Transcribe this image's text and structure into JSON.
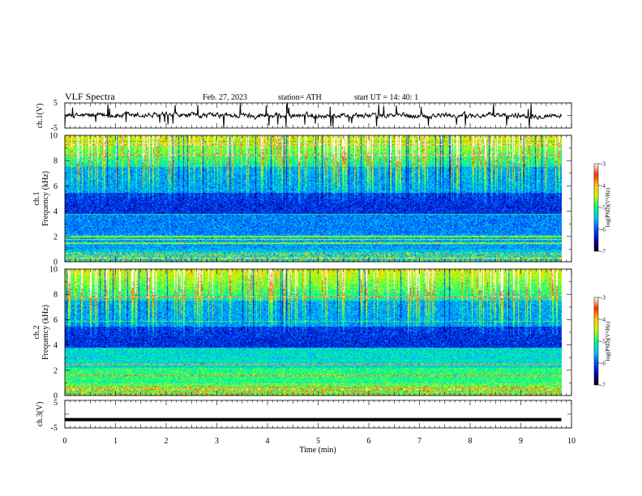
{
  "header": {
    "title": "VLF  Spectra",
    "date": "Feb. 27, 2023",
    "station": "station= ATH",
    "start_ut": "start  UT  =    14: 40: 1"
  },
  "chart_data": [
    {
      "type": "line",
      "name": "ch1-voltage",
      "ylabel": "ch.1(V)",
      "ylim": [
        -5,
        5
      ],
      "yticks": [
        "5",
        "-5"
      ],
      "xlim": [
        0,
        10
      ],
      "trace": "noisy baseline near 0 V with frequent spikes",
      "color": "#000000"
    },
    {
      "type": "heatmap",
      "name": "ch1-spectrogram",
      "ylabel_line1": "ch.1",
      "ylabel_line2": "Frequency (kHz)",
      "ylim": [
        0,
        10
      ],
      "yticks": [
        "0",
        "2",
        "4",
        "6",
        "8",
        "10"
      ],
      "xlim": [
        0,
        9.8
      ],
      "colorbar": {
        "label": "log(PSD)(V²/Hz)",
        "range": [
          -7,
          -3
        ],
        "ticks": [
          "-3",
          "-4",
          "-5",
          "-6",
          "-7"
        ],
        "colors": [
          "#000000",
          "#0000b0",
          "#0050ff",
          "#00c8ff",
          "#00ff80",
          "#c8ff00",
          "#ffd000",
          "#ff3000",
          "#ffffff"
        ]
      }
    },
    {
      "type": "heatmap",
      "name": "ch2-spectrogram",
      "ylabel_line1": "ch.2",
      "ylabel_line2": "Frequency (kHz)",
      "ylim": [
        0,
        10
      ],
      "yticks": [
        "0",
        "2",
        "4",
        "6",
        "8",
        "10"
      ],
      "xlim": [
        0,
        9.8
      ],
      "colorbar": {
        "label": "log(PSD)(V²/Hz)",
        "range": [
          -7,
          -3
        ],
        "ticks": [
          "-3",
          "-4",
          "-5",
          "-6",
          "-7"
        ]
      }
    },
    {
      "type": "line",
      "name": "ch3-voltage",
      "ylabel": "ch.3(V)",
      "ylim": [
        -5,
        5
      ],
      "yticks": [
        "5",
        "-5"
      ],
      "xlim": [
        0,
        10
      ],
      "trace": "flat at about -2 V",
      "level": -2.0,
      "color": "#000000"
    }
  ],
  "xaxis": {
    "label": "Time  (min)",
    "ticks": [
      "0",
      "1",
      "2",
      "3",
      "4",
      "5",
      "6",
      "7",
      "8",
      "9",
      "10"
    ],
    "range": [
      0,
      10
    ]
  }
}
